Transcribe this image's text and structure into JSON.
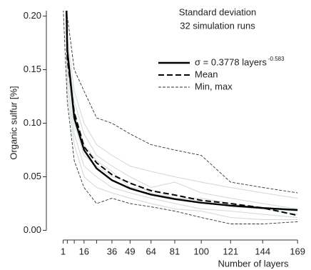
{
  "chart_data": {
    "type": "line",
    "annotation": [
      "Standard deviation",
      "32 simulation runs"
    ],
    "xlabel": "Number of layers",
    "ylabel": "Organic sulfur [%]",
    "x": [
      1,
      4,
      9,
      16,
      25,
      36,
      49,
      64,
      81,
      100,
      121,
      144,
      169
    ],
    "xlim": [
      -11,
      173
    ],
    "xticks": [
      1,
      16,
      36,
      49,
      64,
      81,
      100,
      121,
      144,
      169
    ],
    "xminor_ticks": [
      4,
      9,
      25
    ],
    "ylim": [
      -0.005,
      0.205
    ],
    "yticks": [
      {
        "value": 0,
        "label": "0.00"
      },
      0.05,
      {
        "value": 0.1,
        "label": "0.10"
      },
      0.15,
      {
        "value": 0.2,
        "label": "0.20"
      }
    ],
    "runs_color": "#cfd8d8",
    "runs": [
      [
        0.36,
        0.15,
        0.1,
        0.07,
        0.06,
        0.05,
        0.045,
        0.035,
        0.03,
        0.03,
        0.025,
        0.02,
        0.015
      ],
      [
        0.3,
        0.17,
        0.12,
        0.09,
        0.07,
        0.06,
        0.05,
        0.04,
        0.045,
        0.035,
        0.03,
        0.025,
        0.02
      ],
      [
        0.4,
        0.14,
        0.09,
        0.06,
        0.05,
        0.04,
        0.035,
        0.03,
        0.025,
        0.02,
        0.018,
        0.015,
        0.012
      ],
      [
        0.35,
        0.18,
        0.13,
        0.1,
        0.08,
        0.07,
        0.06,
        0.055,
        0.05,
        0.045,
        0.04,
        0.035,
        0.03
      ],
      [
        0.33,
        0.13,
        0.08,
        0.05,
        0.04,
        0.035,
        0.03,
        0.025,
        0.02,
        0.018,
        0.012,
        0.01,
        0.01
      ],
      [
        0.38,
        0.16,
        0.11,
        0.08,
        0.065,
        0.055,
        0.04,
        0.038,
        0.03,
        0.028,
        0.022,
        0.02,
        0.018
      ]
    ],
    "series": [
      {
        "name": "σ = 0.3778 layers",
        "name_exponent": "-0.583",
        "color": "#000000",
        "style": "solid",
        "values": [
          0.3778,
          0.1684,
          0.1049,
          0.075,
          0.0578,
          0.0468,
          0.0391,
          0.0334,
          0.0292,
          0.0258,
          0.0231,
          0.0209,
          0.019
        ]
      },
      {
        "name": "Mean",
        "color": "#000000",
        "style": "dashed",
        "values": [
          0.38,
          0.16,
          0.11,
          0.078,
          0.063,
          0.052,
          0.044,
          0.037,
          0.033,
          0.028,
          0.025,
          0.021,
          0.014
        ]
      },
      {
        "name": "Min, max",
        "color": "#333333",
        "style": "thin-dashed",
        "values": [
          0.21,
          0.12,
          0.065,
          0.04,
          0.025,
          0.03,
          0.025,
          0.022,
          0.018,
          0.012,
          0.006,
          0.006,
          0.008
        ]
      },
      {
        "color": "#333333",
        "style": "thin-dashed",
        "values": [
          0.3,
          0.2,
          0.15,
          0.13,
          0.105,
          0.1,
          0.09,
          0.08,
          0.075,
          0.07,
          0.045,
          0.04,
          0.035
        ]
      }
    ]
  }
}
